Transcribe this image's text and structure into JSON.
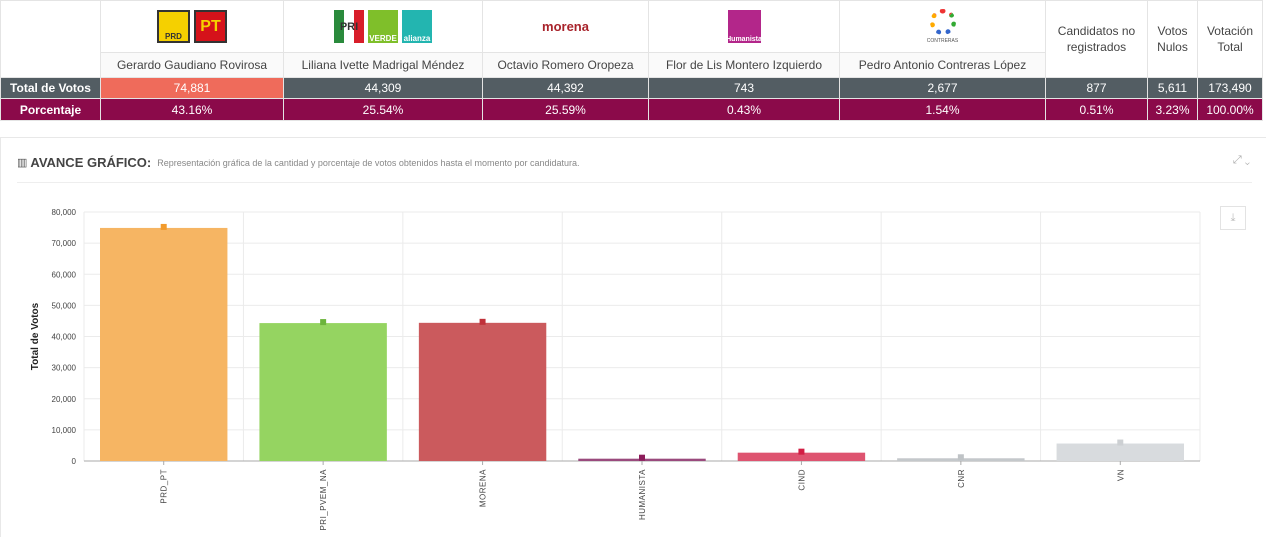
{
  "table": {
    "candidates": [
      {
        "name": "Gerardo Gaudiano Rovirosa",
        "parties": [
          "PRD",
          "PT"
        ],
        "votes": "74,881",
        "pct": "43.16%",
        "highlight": true
      },
      {
        "name": "Liliana Ivette Madrigal Méndez",
        "parties": [
          "PRI",
          "VERDE",
          "alianza"
        ],
        "votes": "44,309",
        "pct": "25.54%"
      },
      {
        "name": "Octavio Romero Oropeza",
        "parties": [
          "morena"
        ],
        "votes": "44,392",
        "pct": "25.59%"
      },
      {
        "name": "Flor de Lis Montero Izquierdo",
        "parties": [
          "Humanista"
        ],
        "votes": "743",
        "pct": "0.43%"
      },
      {
        "name": "Pedro Antonio Contreras López",
        "parties": [
          "CONTRERAS"
        ],
        "votes": "2,677",
        "pct": "1.54%"
      }
    ],
    "extra": [
      {
        "header": "Candidatos no registrados",
        "votes": "877",
        "pct": "0.51%"
      },
      {
        "header": "Votos Nulos",
        "votes": "5,611",
        "pct": "3.23%"
      },
      {
        "header": "Votación Total",
        "votes": "173,490",
        "pct": "100.00%"
      }
    ],
    "row_votes": "Total de Votos",
    "row_pct": "Porcentaje"
  },
  "panel": {
    "title": "AVANCE GRÁFICO:",
    "subtitle": "Representación gráfica de la cantidad y porcentaje de votos obtenidos hasta el momento por candidatura.",
    "chart_icon": "bar-chart-icon",
    "expand_icon": "expand-icon",
    "collapse_icon": "chevron-down-icon",
    "download_icon": "download-icon"
  },
  "chart_data": {
    "type": "bar",
    "ylabel": "Total de Votos",
    "ylim": [
      0,
      80000
    ],
    "yticks": [
      "0",
      "10,000",
      "20,000",
      "30,000",
      "40,000",
      "50,000",
      "60,000",
      "70,000",
      "80,000"
    ],
    "categories": [
      "PRD_PT",
      "PRI_PVEM_NA",
      "MORENA",
      "HUMANISTA",
      "CIND",
      "CNR",
      "VN"
    ],
    "values": [
      74881,
      44309,
      44392,
      743,
      2677,
      877,
      5611
    ],
    "colors": [
      "#f6b563",
      "#95d461",
      "#cb5a5d",
      "#9a4a7d",
      "#de5470",
      "#c4c8cb",
      "#d8dbde"
    ],
    "marker_colors": [
      "#f29b2c",
      "#6cb43c",
      "#c0313a",
      "#8c1b5a",
      "#d21e44",
      "#bfc3c6",
      "#cdd0d3"
    ],
    "grid": true
  }
}
